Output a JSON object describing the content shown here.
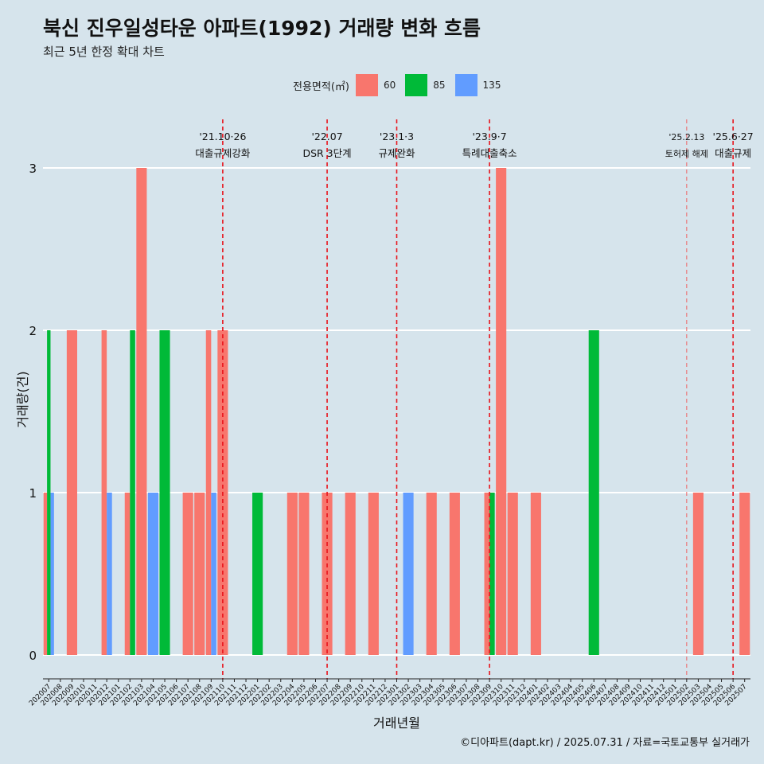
{
  "chart_data": {
    "type": "bar",
    "title": "북신 진우일성타운 아파트(1992) 거래량 변화 흐름",
    "subtitle": "최근 5년 한정 확대 차트",
    "xlabel": "거래년월",
    "ylabel": "거래량(건)",
    "ylim": [
      0,
      3
    ],
    "yticks": [
      "0",
      "1",
      "2",
      "3"
    ],
    "grid": true,
    "legend": {
      "title": "전용면적(㎡)",
      "position": "top",
      "entries": [
        {
          "name": "60",
          "color": "#f8766d"
        },
        {
          "name": "85",
          "color": "#00ba38"
        },
        {
          "name": "135",
          "color": "#619cff"
        }
      ]
    },
    "categories": [
      "202007",
      "202008",
      "202009",
      "202010",
      "202011",
      "202012",
      "202101",
      "202102",
      "202103",
      "202104",
      "202105",
      "202106",
      "202107",
      "202108",
      "202109",
      "202110",
      "202111",
      "202112",
      "202201",
      "202202",
      "202203",
      "202204",
      "202205",
      "202206",
      "202207",
      "202208",
      "202209",
      "202210",
      "202211",
      "202212",
      "202301",
      "202302",
      "202303",
      "202304",
      "202305",
      "202306",
      "202307",
      "202308",
      "202309",
      "202310",
      "202311",
      "202312",
      "202401",
      "202402",
      "202403",
      "202404",
      "202405",
      "202406",
      "202407",
      "202408",
      "202409",
      "202410",
      "202411",
      "202412",
      "202501",
      "202502",
      "202503",
      "202504",
      "202505",
      "202506",
      "202507"
    ],
    "bars": [
      {
        "month": "202007",
        "series": [
          "60",
          "85",
          "135"
        ],
        "values": [
          1,
          2,
          1
        ]
      },
      {
        "month": "202009",
        "series": [
          "60"
        ],
        "values": [
          2
        ]
      },
      {
        "month": "202012",
        "series": [
          "60",
          "135"
        ],
        "values": [
          2,
          1
        ]
      },
      {
        "month": "202102",
        "series": [
          "60",
          "85"
        ],
        "values": [
          1,
          2
        ]
      },
      {
        "month": "202103",
        "series": [
          "60"
        ],
        "values": [
          3
        ]
      },
      {
        "month": "202104",
        "series": [
          "135"
        ],
        "values": [
          1
        ]
      },
      {
        "month": "202105",
        "series": [
          "85"
        ],
        "values": [
          2
        ]
      },
      {
        "month": "202107",
        "series": [
          "60"
        ],
        "values": [
          1
        ]
      },
      {
        "month": "202108",
        "series": [
          "60"
        ],
        "values": [
          1
        ]
      },
      {
        "month": "202109",
        "series": [
          "60",
          "135"
        ],
        "values": [
          2,
          1
        ]
      },
      {
        "month": "202110",
        "series": [
          "60"
        ],
        "values": [
          2
        ]
      },
      {
        "month": "202201",
        "series": [
          "85"
        ],
        "values": [
          1
        ]
      },
      {
        "month": "202204",
        "series": [
          "60"
        ],
        "values": [
          1
        ]
      },
      {
        "month": "202205",
        "series": [
          "60"
        ],
        "values": [
          1
        ]
      },
      {
        "month": "202207",
        "series": [
          "60"
        ],
        "values": [
          1
        ]
      },
      {
        "month": "202209",
        "series": [
          "60"
        ],
        "values": [
          1
        ]
      },
      {
        "month": "202211",
        "series": [
          "60"
        ],
        "values": [
          1
        ]
      },
      {
        "month": "202302",
        "series": [
          "135"
        ],
        "values": [
          1
        ]
      },
      {
        "month": "202304",
        "series": [
          "60"
        ],
        "values": [
          1
        ]
      },
      {
        "month": "202306",
        "series": [
          "60"
        ],
        "values": [
          1
        ]
      },
      {
        "month": "202309",
        "series": [
          "60",
          "85"
        ],
        "values": [
          1,
          1
        ]
      },
      {
        "month": "202310",
        "series": [
          "60"
        ],
        "values": [
          3
        ]
      },
      {
        "month": "202311",
        "series": [
          "60"
        ],
        "values": [
          1
        ]
      },
      {
        "month": "202401",
        "series": [
          "60"
        ],
        "values": [
          1
        ]
      },
      {
        "month": "202406",
        "series": [
          "85"
        ],
        "values": [
          2
        ]
      },
      {
        "month": "202503",
        "series": [
          "60"
        ],
        "values": [
          1
        ]
      },
      {
        "month": "202507",
        "series": [
          "60"
        ],
        "values": [
          1
        ]
      }
    ],
    "annotations": [
      {
        "month": "202110",
        "date": "'21.10·26",
        "label": "대출규제강화"
      },
      {
        "month": "202207",
        "date": "'22.07",
        "label": "DSR 3단계"
      },
      {
        "month": "202301",
        "date": "'23.1·3",
        "label": "규제완화"
      },
      {
        "month": "202309",
        "date": "'23.9·7",
        "label": "특례대출축소"
      },
      {
        "month": "202502",
        "date": "'25.2.13",
        "label": "토허제 해제"
      },
      {
        "month": "202506",
        "date": "'25.6·27",
        "label": "대출규제"
      }
    ],
    "caption": "©디아파트(dapt.kr) / 2025.07.31 / 자료=국토교통부 실거래가"
  }
}
